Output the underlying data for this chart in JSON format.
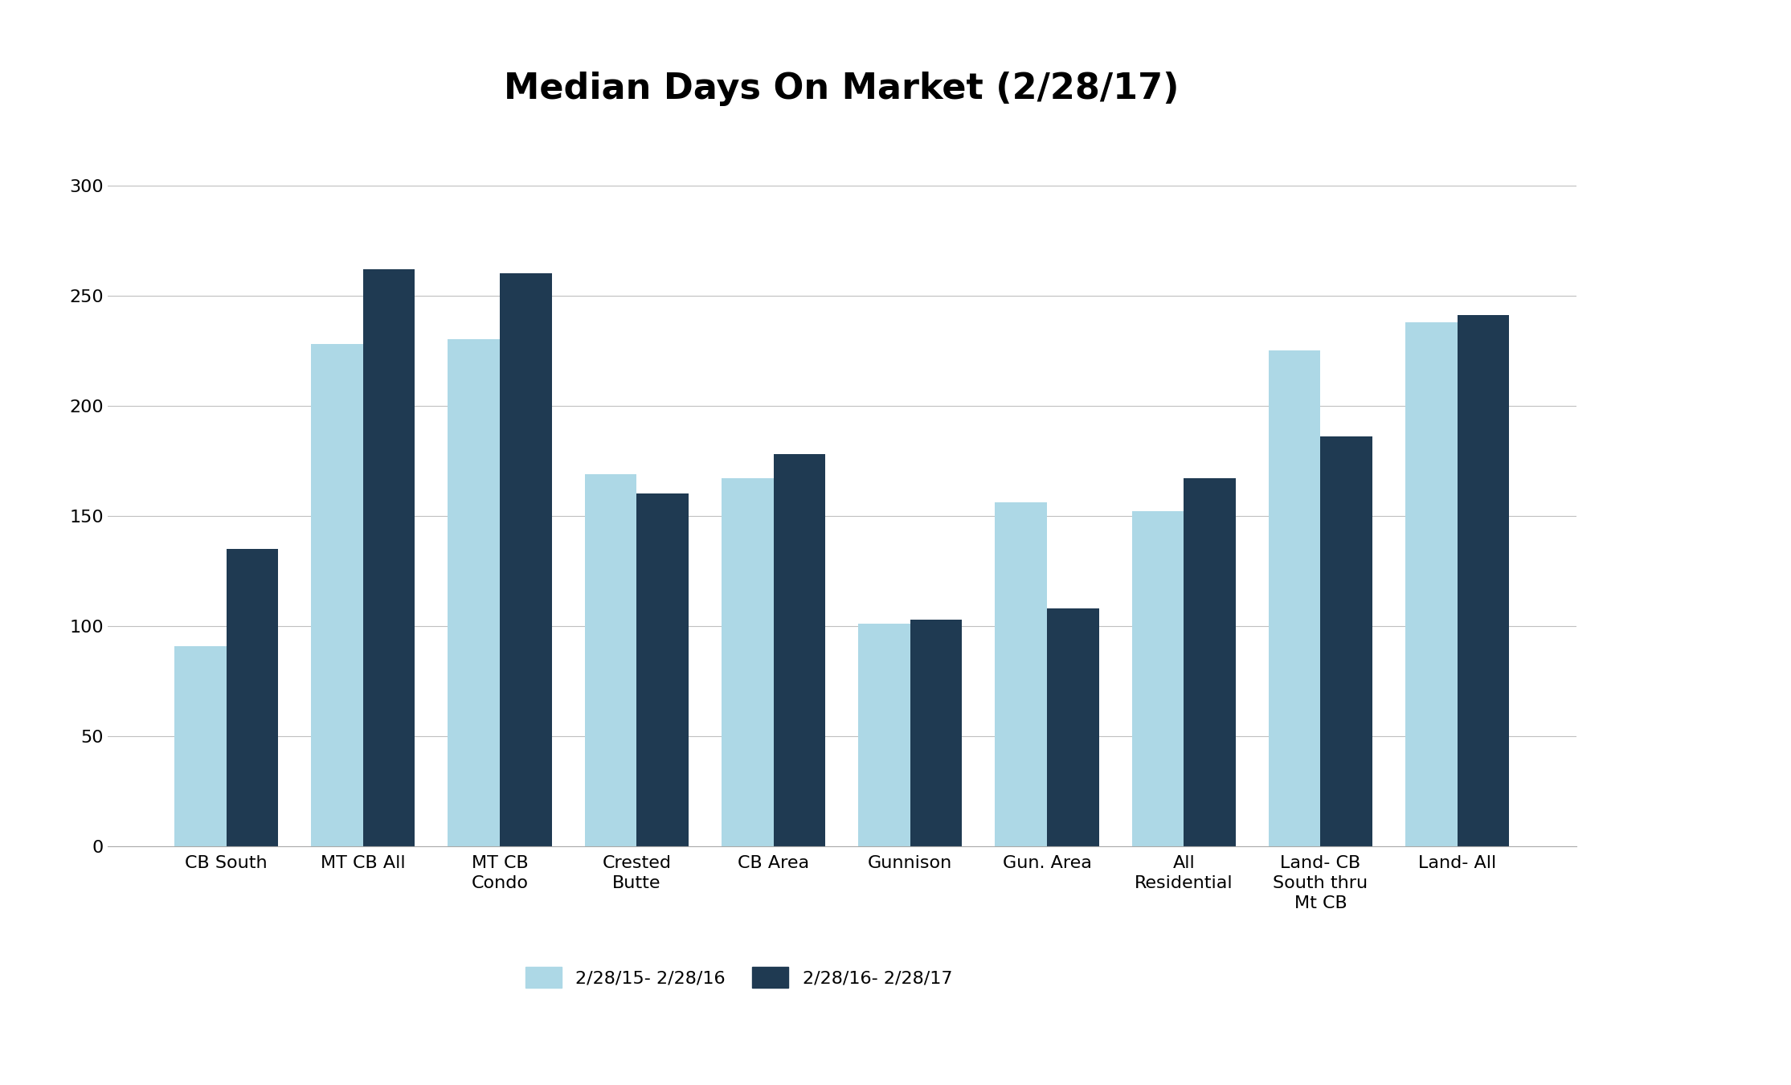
{
  "title": "Median Days On Market (2/28/17)",
  "categories": [
    "CB South",
    "MT CB All",
    "MT CB\nCondo",
    "Crested\nButte",
    "CB Area",
    "Gunnison",
    "Gun. Area",
    "All\nResidential",
    "Land- CB\nSouth thru\nMt CB",
    "Land- All"
  ],
  "series1_label": "2/28/15- 2/28/16",
  "series2_label": "2/28/16- 2/28/17",
  "series1_values": [
    91,
    228,
    230,
    169,
    167,
    101,
    156,
    152,
    225,
    238
  ],
  "series2_values": [
    135,
    262,
    260,
    160,
    178,
    103,
    108,
    167,
    186,
    241
  ],
  "color1": "#add8e6",
  "color2": "#1f3a52",
  "ylim": [
    0,
    325
  ],
  "yticks": [
    0,
    50,
    100,
    150,
    200,
    250,
    300
  ],
  "background_color": "#ffffff",
  "title_fontsize": 32,
  "tick_fontsize": 16,
  "legend_fontsize": 16,
  "bar_width": 0.38
}
